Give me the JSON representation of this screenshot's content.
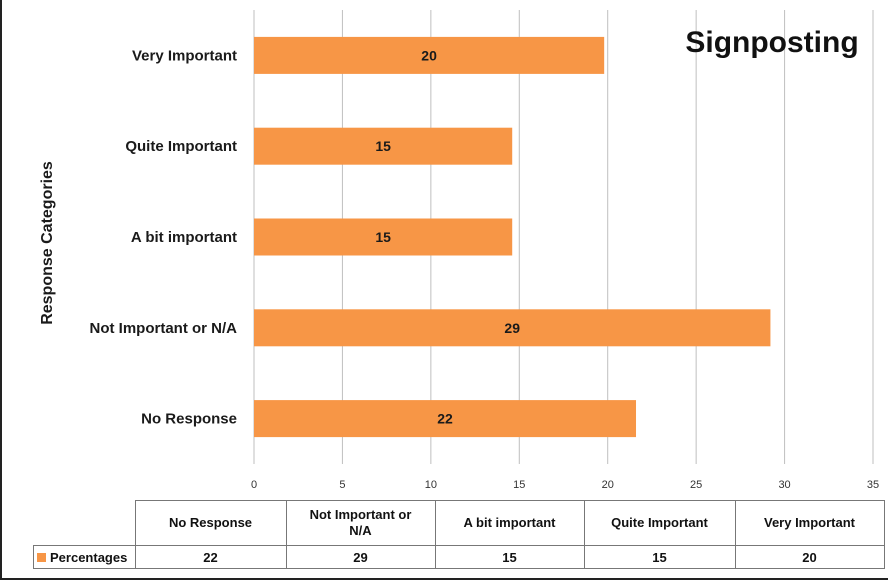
{
  "chart_data": {
    "type": "bar",
    "orientation": "horizontal",
    "title": "Signposting",
    "ylabel": "Response Categories",
    "xlabel": "",
    "categories": [
      "No Response",
      "Not Important or N/A",
      "A bit important",
      "Quite Important",
      "Very Important"
    ],
    "table_headers": [
      "No Response",
      "Not Important or\nN/A",
      "A bit important",
      "Quite Important",
      "Very Important"
    ],
    "series": [
      {
        "name": "Percentages",
        "values": [
          22,
          29,
          15,
          15,
          20
        ],
        "exact": [
          21.6,
          29.2,
          14.6,
          14.6,
          19.8
        ],
        "color": "#F79646"
      }
    ],
    "xlim": [
      0,
      35
    ],
    "xticks": [
      0,
      5,
      10,
      15,
      20,
      25,
      30,
      35
    ],
    "grid": true,
    "legend": "data table below chart",
    "colors": {
      "bar": "#F79646",
      "grid": "#bfbfbf",
      "text": "#1a1a1a"
    }
  }
}
